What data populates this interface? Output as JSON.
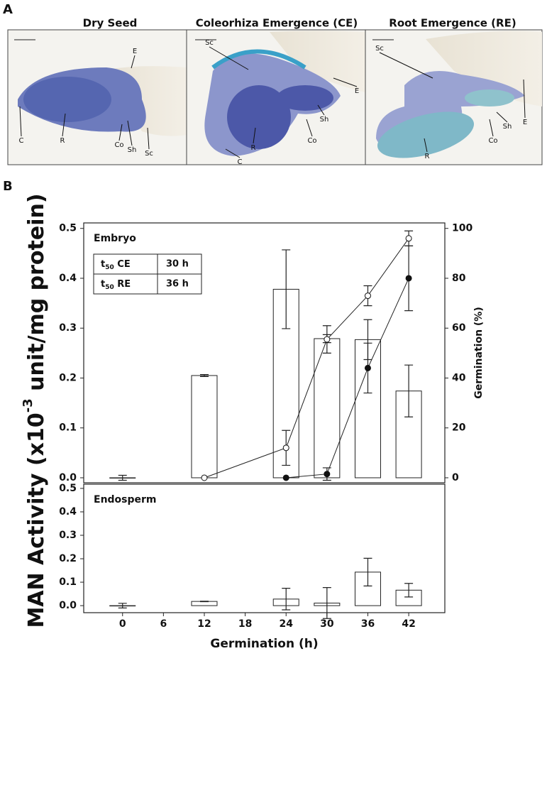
{
  "panel_a": {
    "letter": "A",
    "images": [
      {
        "title": "Dry Seed",
        "labels": [
          "E",
          "C",
          "R",
          "Co",
          "Sh",
          "Sc"
        ]
      },
      {
        "title": "Coleorhiza Emergence (CE)",
        "labels": [
          "Sc",
          "E",
          "Sh",
          "Co",
          "R",
          "C"
        ]
      },
      {
        "title": "Root Emergence (RE)",
        "labels": [
          "Sc",
          "E",
          "Sh",
          "Co",
          "R"
        ]
      }
    ]
  },
  "panel_b": {
    "letter": "B"
  },
  "chart_data": [
    {
      "type": "bar",
      "title": "Embryo",
      "ylabel_parts": [
        "MAN Activity (x10",
        "-3",
        " unit/mg protein)"
      ],
      "y2label": "Germination (%)",
      "x": [
        0,
        6,
        12,
        18,
        24,
        30,
        36,
        42
      ],
      "values": [
        0.0,
        null,
        0.205,
        null,
        0.378,
        0.279,
        0.277,
        0.174
      ],
      "errors": [
        0.005,
        null,
        0.002,
        null,
        0.079,
        0.008,
        0.04,
        0.052
      ],
      "color": "#ffffff",
      "lines": [
        {
          "marker": "open",
          "axis": "y2",
          "x": [
            12,
            24,
            30,
            36,
            42
          ],
          "values": [
            0,
            12,
            55.5,
            73,
            96
          ],
          "errors": [
            null,
            7,
            5.5,
            4,
            3
          ]
        },
        {
          "marker": "filled",
          "axis": "y2",
          "x": [
            24,
            30,
            36,
            42
          ],
          "values": [
            0,
            1.5,
            44,
            80
          ],
          "errors": [
            null,
            2.5,
            10,
            13
          ]
        }
      ],
      "inset": {
        "rows": [
          {
            "symbol": "t",
            "subscript": "50",
            "event": " CE",
            "time": "30 h"
          },
          {
            "symbol": "t",
            "subscript": "50",
            "event": " RE",
            "time": "36 h"
          }
        ]
      },
      "xlim": [
        -5.7,
        47.3
      ],
      "ylim": [
        -0.01,
        0.511
      ],
      "yticks": [
        {
          "value": 0,
          "label": "0.0"
        },
        0.1,
        0.2,
        0.3,
        0.4,
        0.5
      ],
      "y2lim": [
        -2,
        102.2
      ],
      "y2ticks": [
        0,
        20,
        40,
        60,
        80,
        100
      ]
    },
    {
      "type": "bar",
      "title": "Endosperm",
      "xlabel": "Germination (h)",
      "x": [
        0,
        6,
        12,
        18,
        24,
        30,
        36,
        42
      ],
      "values": [
        0.0,
        null,
        0.018,
        null,
        0.028,
        0.011,
        0.143,
        0.066
      ],
      "errors": [
        0.01,
        null,
        0.001,
        null,
        0.046,
        0.066,
        0.059,
        0.029
      ],
      "color": "#ffffff",
      "xlim": [
        -5.7,
        47.3
      ],
      "xticks": [
        0,
        6,
        12,
        18,
        24,
        30,
        36,
        42
      ],
      "ylim": [
        -0.03,
        0.518
      ],
      "yticks": [
        {
          "value": 0,
          "label": "0.0"
        },
        0.1,
        0.2,
        0.3,
        0.4,
        0.5
      ]
    }
  ]
}
